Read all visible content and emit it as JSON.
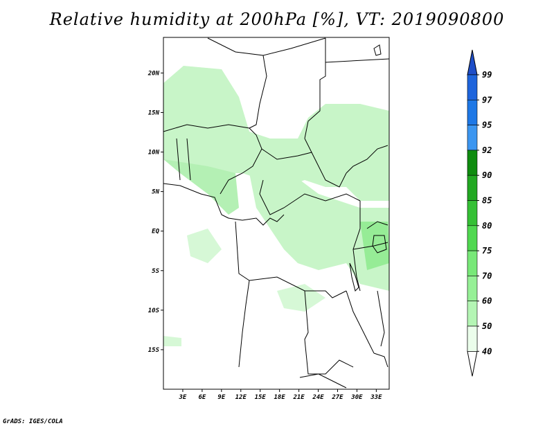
{
  "title": "Relative humidity at 200hPa [%], VT: 2019090800",
  "credit": "GrADS: IGES/COLA",
  "map": {
    "lon_range": [
      0,
      35
    ],
    "lat_range": [
      -20,
      24.5
    ],
    "lon_ticks": [
      "3E",
      "6E",
      "9E",
      "12E",
      "15E",
      "18E",
      "21E",
      "24E",
      "27E",
      "30E",
      "33E"
    ],
    "lat_ticks": [
      "20N",
      "15N",
      "10N",
      "5N",
      "EQ",
      "5S",
      "10S",
      "15S"
    ]
  },
  "colorbar": {
    "levels": [
      "99",
      "97",
      "95",
      "92",
      "90",
      "85",
      "80",
      "75",
      "70",
      "60",
      "50",
      "40"
    ],
    "colors": [
      "#1e64dc",
      "#1e78e6",
      "#3c96f0",
      "#0f8c0f",
      "#22a822",
      "#35c035",
      "#50d850",
      "#78e878",
      "#96f096",
      "#b4f5b4",
      "#d2fad2",
      "#ebfdeb"
    ],
    "above_color": "#1e4ec8",
    "below_color": "#ffffff"
  },
  "field_color": "#c8f5c8"
}
